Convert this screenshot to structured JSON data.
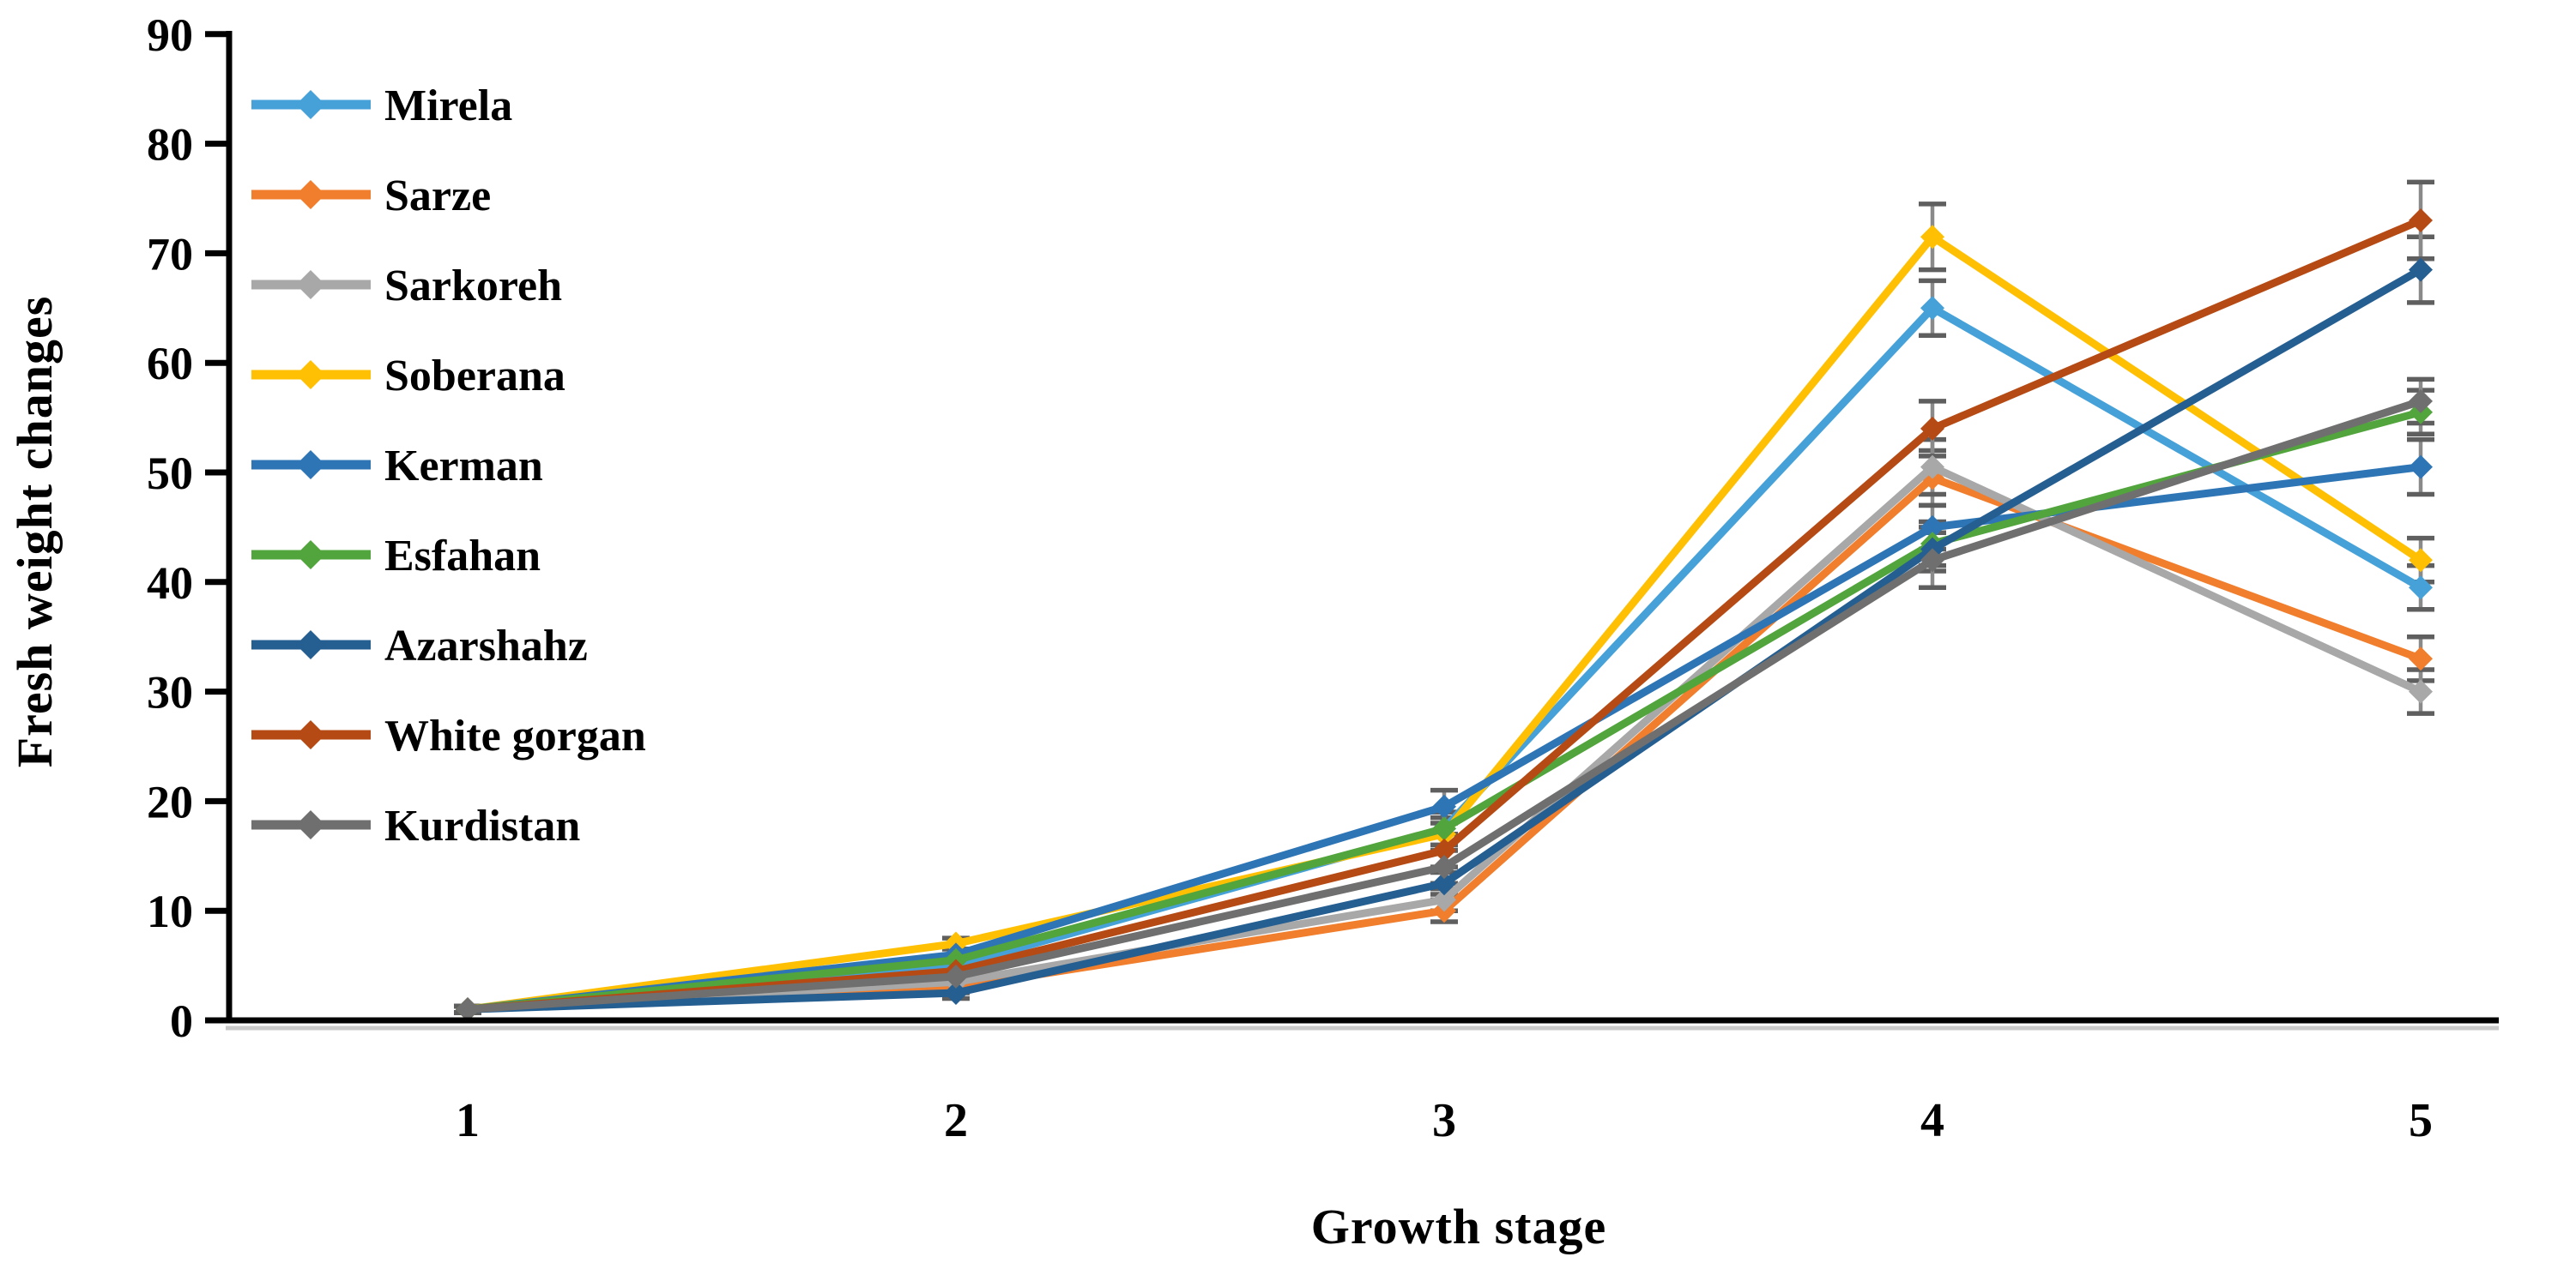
{
  "chart_data": {
    "type": "line",
    "title": "",
    "xlabel": "Growth stage",
    "ylabel": "Fresh weight changes",
    "x_categories": [
      "1",
      "2",
      "3",
      "4",
      "5"
    ],
    "ylim": [
      0,
      90
    ],
    "ytick_step": 10,
    "ytick_labels": [
      "0",
      "10",
      "20",
      "30",
      "40",
      "50",
      "60",
      "70",
      "80",
      "90"
    ],
    "grid": false,
    "legend_position": "inside-top-left",
    "marker_shape": "diamond",
    "error_bar_color": "#8a8a8a",
    "error_cap_color": "#5f5f5f",
    "axis_color": "#000000",
    "series": [
      {
        "name": "Mirela",
        "color": "#45A1D8",
        "values": [
          1,
          5,
          17.5,
          65,
          39.5
        ],
        "errors": [
          0.3,
          0.5,
          1.5,
          2.5,
          2
        ]
      },
      {
        "name": "Sarze",
        "color": "#F07E2C",
        "values": [
          1,
          3,
          10,
          49.5,
          33
        ],
        "errors": [
          0.3,
          0.5,
          1,
          2.5,
          2
        ]
      },
      {
        "name": "Sarkoreh",
        "color": "#A8A8A8",
        "values": [
          1,
          3.5,
          11,
          50.5,
          30
        ],
        "errors": [
          0.3,
          0.5,
          1,
          2.5,
          2
        ]
      },
      {
        "name": "Soberana",
        "color": "#FFC003",
        "values": [
          1,
          7,
          17,
          71.5,
          42
        ],
        "errors": [
          0.3,
          0.5,
          1.5,
          3,
          2
        ]
      },
      {
        "name": "Kerman",
        "color": "#2E75B6",
        "values": [
          1,
          6,
          19.5,
          45,
          50.5
        ],
        "errors": [
          0.3,
          0.5,
          1.5,
          2,
          2.5
        ]
      },
      {
        "name": "Esfahan",
        "color": "#52A43C",
        "values": [
          1,
          5.5,
          17.5,
          43.5,
          55.5
        ],
        "errors": [
          0.3,
          0.5,
          1.5,
          2,
          2
        ]
      },
      {
        "name": "Azarshahz",
        "color": "#255E91",
        "values": [
          1,
          2.5,
          12.5,
          43,
          68.5
        ],
        "errors": [
          0.3,
          0.5,
          1,
          2,
          3
        ]
      },
      {
        "name": "White gorgan",
        "color": "#B54A14",
        "values": [
          1,
          4.5,
          15.5,
          54,
          73
        ],
        "errors": [
          0.3,
          0.5,
          1.5,
          2.5,
          3.5
        ]
      },
      {
        "name": "Kurdistan",
        "color": "#6F6F6F",
        "values": [
          1,
          4,
          14,
          42,
          56.5
        ],
        "errors": [
          0.3,
          0.5,
          1.5,
          2.5,
          2
        ]
      }
    ]
  }
}
